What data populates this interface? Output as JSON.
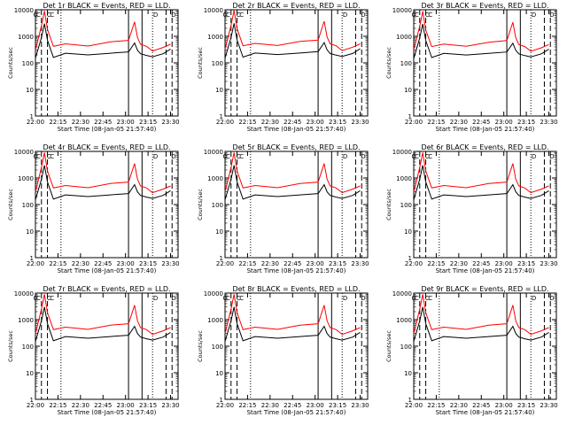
{
  "chart_data": [
    {
      "type": "line",
      "title": "Det 1r BLACK = Events, RED = LLD.",
      "xlabel": "Start Time (08-Jan-05 21:57:40)",
      "ylabel": "Counts/sec",
      "yscale": "log",
      "ylim": [
        1,
        10000
      ],
      "x_tick_labels": [
        "22:00",
        "22:15",
        "22:30",
        "22:45",
        "23:00",
        "23:15",
        "23:30"
      ],
      "y_tick_labels": [
        "1",
        "10",
        "100",
        "1000",
        "10000"
      ],
      "markers": [
        "C",
        "C",
        "C",
        "C",
        "D",
        "D"
      ],
      "series": [
        {
          "color": "#ff0000",
          "x": [
            0,
            4,
            6,
            8,
            12,
            20,
            35,
            50,
            62,
            66,
            68,
            70,
            74,
            78,
            85,
            90
          ],
          "y": [
            300,
            2500,
            9000,
            1800,
            420,
            520,
            430,
            620,
            700,
            3500,
            900,
            500,
            420,
            280,
            380,
            500
          ]
        },
        {
          "color": "#000000",
          "x": [
            0,
            4,
            6,
            8,
            12,
            20,
            35,
            50,
            62,
            66,
            68,
            70,
            74,
            78,
            85,
            90
          ],
          "y": [
            150,
            900,
            3000,
            700,
            160,
            230,
            200,
            230,
            260,
            560,
            300,
            220,
            190,
            170,
            220,
            330
          ]
        }
      ]
    },
    {
      "type": "line",
      "title": "Det 2r BLACK = Events, RED = LLD.",
      "xlabel": "Start Time (08-Jan-05 21:57:40)",
      "ylabel": "Counts/sec",
      "yscale": "log",
      "ylim": [
        1,
        10000
      ],
      "x_tick_labels": [
        "22:00",
        "22:15",
        "22:30",
        "22:45",
        "23:00",
        "23:15",
        "23:30"
      ],
      "y_tick_labels": [
        "1",
        "10",
        "100",
        "1000",
        "10000"
      ],
      "markers": [
        "C",
        "C",
        "C",
        "C",
        "D",
        "D"
      ],
      "series": [
        {
          "color": "#ff0000",
          "x": [
            0,
            4,
            6,
            8,
            12,
            20,
            35,
            50,
            62,
            66,
            68,
            70,
            74,
            78,
            85,
            90
          ],
          "y": [
            320,
            2600,
            9500,
            1900,
            440,
            540,
            450,
            640,
            720,
            3700,
            950,
            520,
            440,
            290,
            390,
            520
          ]
        },
        {
          "color": "#000000",
          "x": [
            0,
            4,
            6,
            8,
            12,
            20,
            35,
            50,
            62,
            66,
            68,
            70,
            74,
            78,
            85,
            90
          ],
          "y": [
            150,
            900,
            3100,
            720,
            165,
            235,
            205,
            235,
            265,
            580,
            310,
            225,
            195,
            175,
            225,
            340
          ]
        }
      ]
    },
    {
      "type": "line",
      "title": "Det 3r BLACK = Events, RED = LLD.",
      "xlabel": "Start Time (08-Jan-05 21:57:40)",
      "ylabel": "Counts/sec",
      "yscale": "log",
      "ylim": [
        1,
        10000
      ],
      "x_tick_labels": [
        "22:00",
        "22:15",
        "22:30",
        "22:45",
        "23:00",
        "23:15",
        "23:30"
      ],
      "y_tick_labels": [
        "1",
        "10",
        "100",
        "1000",
        "10000"
      ],
      "markers": [
        "C",
        "C",
        "C",
        "C",
        "D",
        "D"
      ],
      "series": [
        {
          "color": "#ff0000",
          "x": [
            0,
            4,
            6,
            8,
            12,
            20,
            35,
            50,
            62,
            66,
            68,
            70,
            74,
            78,
            85,
            90
          ],
          "y": [
            310,
            2400,
            8800,
            1700,
            410,
            510,
            420,
            600,
            690,
            3400,
            880,
            490,
            410,
            275,
            370,
            490
          ]
        },
        {
          "color": "#000000",
          "x": [
            0,
            4,
            6,
            8,
            12,
            20,
            35,
            50,
            62,
            66,
            68,
            70,
            74,
            78,
            85,
            90
          ],
          "y": [
            145,
            880,
            2900,
            690,
            158,
            228,
            198,
            228,
            258,
            550,
            295,
            218,
            188,
            168,
            218,
            325
          ]
        }
      ]
    },
    {
      "type": "line",
      "title": "Det 4r BLACK = Events, RED = LLD.",
      "xlabel": "Start Time (08-Jan-05 21:57:40)",
      "ylabel": "Counts/sec",
      "yscale": "log",
      "ylim": [
        1,
        10000
      ],
      "x_tick_labels": [
        "22:00",
        "22:15",
        "22:30",
        "22:45",
        "23:00",
        "23:15",
        "23:30"
      ],
      "y_tick_labels": [
        "1",
        "10",
        "100",
        "1000",
        "10000"
      ],
      "markers": [
        "C",
        "C",
        "C",
        "C",
        "D",
        "D"
      ],
      "series": [
        {
          "color": "#ff0000",
          "x": [
            0,
            4,
            6,
            8,
            12,
            20,
            35,
            50,
            62,
            66,
            68,
            70,
            74,
            78,
            85,
            90
          ],
          "y": [
            300,
            2500,
            9000,
            1800,
            420,
            520,
            430,
            620,
            700,
            3500,
            900,
            500,
            420,
            280,
            380,
            500
          ]
        },
        {
          "color": "#000000",
          "x": [
            0,
            4,
            6,
            8,
            12,
            20,
            35,
            50,
            62,
            66,
            68,
            70,
            74,
            78,
            85,
            90
          ],
          "y": [
            150,
            900,
            3000,
            700,
            160,
            230,
            200,
            230,
            260,
            560,
            300,
            220,
            190,
            170,
            220,
            330
          ]
        }
      ]
    },
    {
      "type": "line",
      "title": "Det 5r BLACK = Events, RED = LLD.",
      "xlabel": "Start Time (08-Jan-05 21:57:40)",
      "ylabel": "Counts/sec",
      "yscale": "log",
      "ylim": [
        1,
        10000
      ],
      "x_tick_labels": [
        "22:00",
        "22:15",
        "22:30",
        "22:45",
        "23:00",
        "23:15",
        "23:30"
      ],
      "y_tick_labels": [
        "1",
        "10",
        "100",
        "1000",
        "10000"
      ],
      "markers": [
        "C",
        "C",
        "C",
        "C",
        "D",
        "D"
      ],
      "series": [
        {
          "color": "#ff0000",
          "x": [
            0,
            4,
            6,
            8,
            12,
            20,
            35,
            50,
            62,
            66,
            68,
            70,
            74,
            78,
            85,
            90
          ],
          "y": [
            300,
            2500,
            9000,
            1800,
            420,
            520,
            430,
            620,
            700,
            3500,
            900,
            500,
            420,
            280,
            380,
            500
          ]
        },
        {
          "color": "#000000",
          "x": [
            0,
            4,
            6,
            8,
            12,
            20,
            35,
            50,
            62,
            66,
            68,
            70,
            74,
            78,
            85,
            90
          ],
          "y": [
            150,
            900,
            3000,
            700,
            160,
            230,
            200,
            230,
            260,
            560,
            300,
            220,
            190,
            170,
            220,
            330
          ]
        }
      ]
    },
    {
      "type": "line",
      "title": "Det 6r BLACK = Events, RED = LLD.",
      "xlabel": "Start Time (08-Jan-05 21:57:40)",
      "ylabel": "Counts/sec",
      "yscale": "log",
      "ylim": [
        1,
        10000
      ],
      "x_tick_labels": [
        "22:00",
        "22:15",
        "22:30",
        "22:45",
        "23:00",
        "23:15",
        "23:30"
      ],
      "y_tick_labels": [
        "1",
        "10",
        "100",
        "1000",
        "10000"
      ],
      "markers": [
        "C",
        "C",
        "C",
        "C",
        "D",
        "D"
      ],
      "series": [
        {
          "color": "#ff0000",
          "x": [
            0,
            4,
            6,
            8,
            12,
            20,
            35,
            50,
            62,
            66,
            68,
            70,
            74,
            78,
            85,
            90
          ],
          "y": [
            300,
            2500,
            9000,
            1800,
            420,
            520,
            430,
            620,
            700,
            3500,
            900,
            500,
            420,
            280,
            380,
            500
          ]
        },
        {
          "color": "#000000",
          "x": [
            0,
            4,
            6,
            8,
            12,
            20,
            35,
            50,
            62,
            66,
            68,
            70,
            74,
            78,
            85,
            90
          ],
          "y": [
            150,
            900,
            3000,
            700,
            160,
            230,
            200,
            230,
            260,
            560,
            300,
            220,
            190,
            170,
            220,
            330
          ]
        }
      ]
    },
    {
      "type": "line",
      "title": "Det 7r BLACK = Events, RED = LLD.",
      "xlabel": "Start Time (08-Jan-05 21:57:40)",
      "ylabel": "Counts/sec",
      "yscale": "log",
      "ylim": [
        1,
        10000
      ],
      "x_tick_labels": [
        "22:00",
        "22:15",
        "22:30",
        "22:45",
        "23:00",
        "23:15",
        "23:30"
      ],
      "y_tick_labels": [
        "1",
        "10",
        "100",
        "1000",
        "10000"
      ],
      "markers": [
        "C",
        "C",
        "C",
        "C",
        "D",
        "D"
      ],
      "series": [
        {
          "color": "#ff0000",
          "x": [
            0,
            4,
            6,
            8,
            12,
            20,
            35,
            50,
            62,
            66,
            68,
            70,
            74,
            78,
            85,
            90
          ],
          "y": [
            300,
            2500,
            9000,
            1800,
            420,
            520,
            430,
            620,
            700,
            3500,
            900,
            500,
            420,
            280,
            380,
            500
          ]
        },
        {
          "color": "#000000",
          "x": [
            0,
            4,
            6,
            8,
            12,
            20,
            35,
            50,
            62,
            66,
            68,
            70,
            74,
            78,
            85,
            90
          ],
          "y": [
            150,
            900,
            3000,
            700,
            160,
            230,
            200,
            230,
            260,
            560,
            300,
            220,
            190,
            170,
            220,
            330
          ]
        }
      ]
    },
    {
      "type": "line",
      "title": "Det 8r BLACK = Events, RED = LLD.",
      "xlabel": "Start Time (08-Jan-05 21:57:40)",
      "ylabel": "Counts/sec",
      "yscale": "log",
      "ylim": [
        1,
        10000
      ],
      "x_tick_labels": [
        "22:00",
        "22:15",
        "22:30",
        "22:45",
        "23:00",
        "23:15",
        "23:30"
      ],
      "y_tick_labels": [
        "1",
        "10",
        "100",
        "1000",
        "10000"
      ],
      "markers": [
        "C",
        "C",
        "C",
        "C",
        "D",
        "D"
      ],
      "series": [
        {
          "color": "#ff0000",
          "x": [
            0,
            4,
            6,
            8,
            12,
            20,
            35,
            50,
            62,
            66,
            68,
            70,
            74,
            78,
            85,
            90
          ],
          "y": [
            300,
            2500,
            9000,
            1800,
            420,
            520,
            430,
            620,
            700,
            3500,
            900,
            500,
            420,
            280,
            380,
            500
          ]
        },
        {
          "color": "#000000",
          "x": [
            0,
            4,
            6,
            8,
            12,
            20,
            35,
            50,
            62,
            66,
            68,
            70,
            74,
            78,
            85,
            90
          ],
          "y": [
            150,
            900,
            3000,
            700,
            160,
            230,
            200,
            230,
            260,
            560,
            300,
            220,
            190,
            170,
            220,
            330
          ]
        }
      ]
    },
    {
      "type": "line",
      "title": "Det 9r BLACK = Events, RED = LLD.",
      "xlabel": "Start Time (08-Jan-05 21:57:40)",
      "ylabel": "Counts/sec",
      "yscale": "log",
      "ylim": [
        1,
        10000
      ],
      "x_tick_labels": [
        "22:00",
        "22:15",
        "22:30",
        "22:45",
        "23:00",
        "23:15",
        "23:30"
      ],
      "y_tick_labels": [
        "1",
        "10",
        "100",
        "1000",
        "10000"
      ],
      "markers": [
        "C",
        "C",
        "C",
        "C",
        "D",
        "D"
      ],
      "series": [
        {
          "color": "#ff0000",
          "x": [
            0,
            4,
            6,
            8,
            12,
            20,
            35,
            50,
            62,
            66,
            68,
            70,
            74,
            78,
            85,
            90
          ],
          "y": [
            300,
            2500,
            9000,
            1800,
            420,
            520,
            430,
            620,
            700,
            3500,
            900,
            500,
            420,
            280,
            380,
            500
          ]
        },
        {
          "color": "#000000",
          "x": [
            0,
            4,
            6,
            8,
            12,
            20,
            35,
            50,
            62,
            66,
            68,
            70,
            74,
            78,
            85,
            90
          ],
          "y": [
            150,
            900,
            3000,
            700,
            160,
            230,
            200,
            230,
            260,
            560,
            300,
            220,
            190,
            170,
            220,
            330
          ]
        }
      ]
    }
  ]
}
